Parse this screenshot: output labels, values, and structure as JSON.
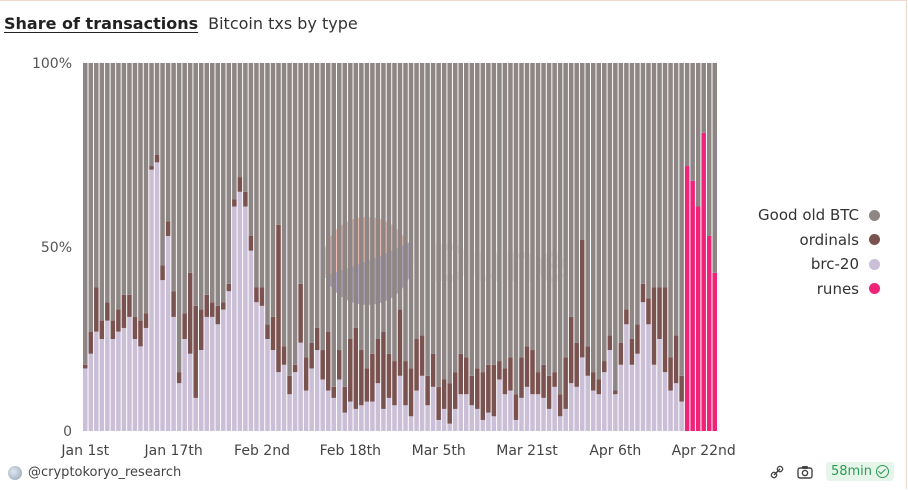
{
  "header": {
    "title": "Share of transactions",
    "subtitle": "Bitcoin txs by type"
  },
  "watermark": "Dune",
  "footer": {
    "author": "@cryptokoryo_research",
    "refresh": "58min"
  },
  "colors": {
    "good_old_btc": "#8e8685",
    "ordinals": "#7a5250",
    "brc20": "#cabfd6",
    "runes": "#ef2378"
  },
  "chart_data": {
    "type": "bar",
    "stacked": true,
    "normalized": true,
    "ylim": [
      0,
      100
    ],
    "yticks": [
      {
        "value": 100,
        "label": "100%"
      },
      {
        "value": 50,
        "label": "50%"
      },
      {
        "value": 0,
        "label": "0"
      }
    ],
    "xticks": [
      {
        "index": 0,
        "label": "Jan 1st"
      },
      {
        "index": 16,
        "label": "Jan 17th"
      },
      {
        "index": 32,
        "label": "Feb 2nd"
      },
      {
        "index": 48,
        "label": "Feb 18th"
      },
      {
        "index": 64,
        "label": "Mar 5th"
      },
      {
        "index": 80,
        "label": "Mar 21st"
      },
      {
        "index": 96,
        "label": "Apr 6th"
      },
      {
        "index": 112,
        "label": "Apr 22nd"
      }
    ],
    "legend_position": "right",
    "series": [
      {
        "name": "Good old BTC",
        "key": "good_old_btc"
      },
      {
        "name": "ordinals",
        "key": "ordinals"
      },
      {
        "name": "brc-20",
        "key": "brc20"
      },
      {
        "name": "runes",
        "key": "runes"
      }
    ],
    "brc20": [
      17,
      21,
      27,
      25,
      30,
      25,
      27,
      28,
      31,
      25,
      23,
      28,
      71,
      73,
      41,
      53,
      31,
      13,
      25,
      21,
      9,
      22,
      31,
      31,
      29,
      33,
      38,
      61,
      65,
      61,
      49,
      35,
      34,
      25,
      22,
      16,
      18,
      10,
      16,
      24,
      11,
      17,
      22,
      14,
      11,
      9,
      14,
      5,
      8,
      6,
      7,
      8,
      8,
      13,
      6,
      9,
      7,
      15,
      7,
      4,
      11,
      15,
      7,
      12,
      3,
      6,
      2,
      6,
      10,
      10,
      7,
      6,
      3,
      5,
      4,
      14,
      10,
      11,
      3,
      9,
      12,
      10,
      10,
      9,
      6,
      12,
      4,
      6,
      13,
      12,
      20,
      15,
      11,
      10,
      16,
      22,
      10,
      18,
      29,
      18,
      21,
      35,
      29,
      18,
      25,
      16,
      11,
      13,
      8,
      0,
      0,
      0,
      0,
      0,
      0
    ],
    "ordinals": [
      1,
      6,
      12,
      5,
      5,
      5,
      6,
      9,
      6,
      6,
      7,
      4,
      1,
      2,
      4,
      4,
      7,
      3,
      7,
      22,
      25,
      11,
      6,
      4,
      5,
      2,
      2,
      2,
      4,
      4,
      4,
      4,
      5,
      4,
      9,
      40,
      5,
      5,
      2,
      16,
      9,
      7,
      6,
      8,
      16,
      3,
      8,
      7,
      17,
      22,
      15,
      9,
      13,
      12,
      21,
      12,
      12,
      18,
      12,
      13,
      14,
      11,
      8,
      9,
      9,
      8,
      11,
      10,
      11,
      10,
      8,
      11,
      13,
      13,
      14,
      5,
      7,
      9,
      7,
      11,
      11,
      12,
      6,
      9,
      9,
      4,
      6,
      14,
      18,
      12,
      32,
      8,
      5,
      4,
      3,
      4,
      1,
      6,
      4,
      7,
      8,
      5,
      7,
      21,
      14,
      23,
      9,
      13,
      7,
      0,
      0,
      0,
      0,
      0,
      0
    ],
    "runes": [
      0,
      0,
      0,
      0,
      0,
      0,
      0,
      0,
      0,
      0,
      0,
      0,
      0,
      0,
      0,
      0,
      0,
      0,
      0,
      0,
      0,
      0,
      0,
      0,
      0,
      0,
      0,
      0,
      0,
      0,
      0,
      0,
      0,
      0,
      0,
      0,
      0,
      0,
      0,
      0,
      0,
      0,
      0,
      0,
      0,
      0,
      0,
      0,
      0,
      0,
      0,
      0,
      0,
      0,
      0,
      0,
      0,
      0,
      0,
      0,
      0,
      0,
      0,
      0,
      0,
      0,
      0,
      0,
      0,
      0,
      0,
      0,
      0,
      0,
      0,
      0,
      0,
      0,
      0,
      0,
      0,
      0,
      0,
      0,
      0,
      0,
      0,
      0,
      0,
      0,
      0,
      0,
      0,
      0,
      0,
      0,
      0,
      0,
      0,
      0,
      0,
      0,
      0,
      0,
      0,
      0,
      0,
      0,
      0,
      72,
      68,
      61,
      81,
      53,
      43
    ]
  }
}
